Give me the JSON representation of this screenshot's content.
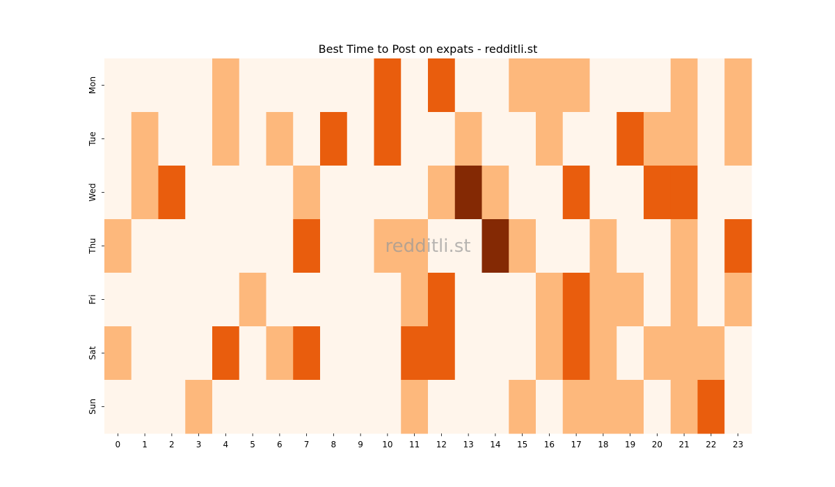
{
  "chart_data": {
    "type": "heatmap",
    "title": "Best Time to Post on expats - redditli.st",
    "watermark": "redditli.st",
    "xlabel": "",
    "ylabel": "",
    "x": [
      "0",
      "1",
      "2",
      "3",
      "4",
      "5",
      "6",
      "7",
      "8",
      "9",
      "10",
      "11",
      "12",
      "13",
      "14",
      "15",
      "16",
      "17",
      "18",
      "19",
      "20",
      "21",
      "22",
      "23"
    ],
    "y": [
      "Mon",
      "Tue",
      "Wed",
      "Thu",
      "Fri",
      "Sat",
      "Sun"
    ],
    "values": [
      [
        0,
        0,
        0,
        0,
        1,
        0,
        0,
        0,
        0,
        0,
        2,
        0,
        2,
        0,
        0,
        1,
        1,
        1,
        0,
        0,
        0,
        1,
        0,
        1
      ],
      [
        0,
        1,
        0,
        0,
        1,
        0,
        1,
        0,
        2,
        0,
        2,
        0,
        0,
        1,
        0,
        0,
        1,
        0,
        0,
        2,
        1,
        1,
        0,
        1
      ],
      [
        0,
        1,
        2,
        0,
        0,
        0,
        0,
        1,
        0,
        0,
        0,
        0,
        1,
        3,
        1,
        0,
        0,
        2,
        0,
        0,
        2,
        2,
        0,
        0
      ],
      [
        1,
        0,
        0,
        0,
        0,
        0,
        0,
        2,
        0,
        0,
        1,
        1,
        0,
        0,
        3,
        1,
        0,
        0,
        1,
        0,
        0,
        1,
        0,
        2
      ],
      [
        0,
        0,
        0,
        0,
        0,
        1,
        0,
        0,
        0,
        0,
        0,
        1,
        2,
        0,
        0,
        0,
        1,
        2,
        1,
        1,
        0,
        1,
        0,
        1
      ],
      [
        1,
        0,
        0,
        0,
        2,
        0,
        1,
        2,
        0,
        0,
        0,
        2,
        2,
        0,
        0,
        0,
        1,
        2,
        1,
        0,
        1,
        1,
        1,
        0
      ],
      [
        0,
        0,
        0,
        1,
        0,
        0,
        0,
        0,
        0,
        0,
        0,
        1,
        0,
        0,
        0,
        1,
        0,
        1,
        1,
        1,
        0,
        1,
        2,
        0
      ]
    ],
    "colormap": {
      "0": "#fff5eb",
      "1": "#fdb87c",
      "2": "#e95d0d",
      "3": "#842904"
    },
    "grid": false,
    "legend": "none"
  }
}
